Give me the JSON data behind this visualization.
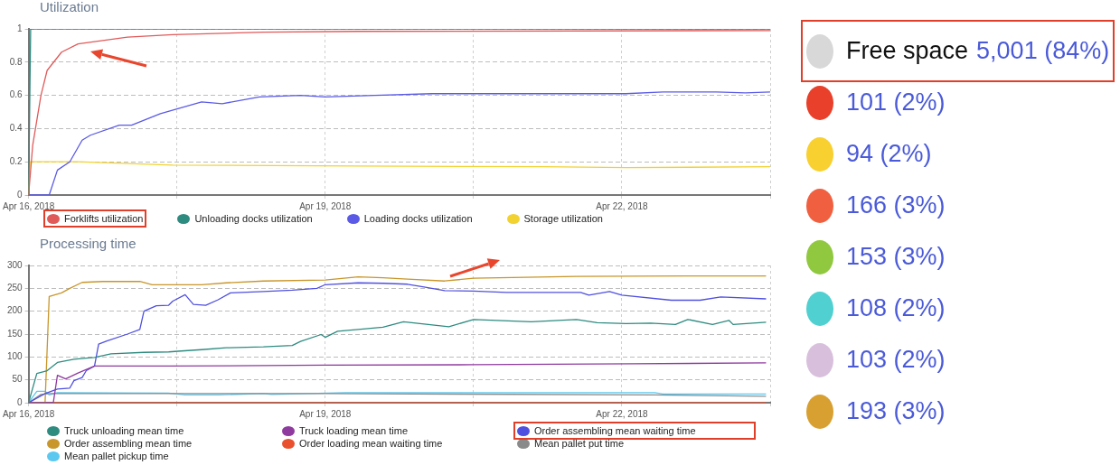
{
  "chart_data": [
    {
      "type": "line",
      "title": "Utilization",
      "xlim": [
        "2018-04-16",
        "2018-04-23T12:00"
      ],
      "xticks": [
        {
          "value": "2018-04-16",
          "label": "Apr 16, 2018"
        },
        {
          "value": "2018-04-17T12:00",
          "label": null
        },
        {
          "value": "2018-04-19",
          "label": "Apr 19, 2018"
        },
        {
          "value": "2018-04-20T12:00",
          "label": null
        },
        {
          "value": "2018-04-22",
          "label": "Apr 22, 2018"
        },
        {
          "value": "2018-04-23T12:00",
          "label": null
        }
      ],
      "ylim": [
        0,
        1
      ],
      "yticks": [
        0,
        0.2,
        0.4,
        0.6,
        0.8,
        1
      ],
      "grid": true,
      "legend": "bottom",
      "marker": "none",
      "line_style": "solid",
      "series": [
        {
          "name": "Forklifts utilization",
          "color": "#e05a5a",
          "x": [
            "2018-04-16",
            "2018-04-16T01:00",
            "2018-04-16T03:00",
            "2018-04-16T04:30",
            "2018-04-16T08:00",
            "2018-04-16T12:00",
            "2018-04-17",
            "2018-04-17T11:00",
            "2018-04-18T09:00",
            "2018-04-19T08:00",
            "2018-04-23T12:00"
          ],
          "values": [
            0,
            0.3,
            0.6,
            0.75,
            0.86,
            0.91,
            0.95,
            0.965,
            0.98,
            0.985,
            0.99
          ]
        },
        {
          "name": "Unloading docks utilization",
          "color": "#2e8b80",
          "x": [
            "2018-04-16",
            "2018-04-16T00:30",
            "2018-04-23T12:00"
          ],
          "values": [
            0,
            1,
            1
          ]
        },
        {
          "name": "Loading docks utilization",
          "color": "#5a5ae6",
          "x": [
            "2018-04-16",
            "2018-04-16T05:00",
            "2018-04-16T07:00",
            "2018-04-16T10:00",
            "2018-04-16T13:00",
            "2018-04-16T15:00",
            "2018-04-16T22:00",
            "2018-04-17T01:00",
            "2018-04-17T08:00",
            "2018-04-17T18:00",
            "2018-04-17T23:00",
            "2018-04-18T08:00",
            "2018-04-18T18:00",
            "2018-04-19",
            "2018-04-19T12:00",
            "2018-04-20T02:00",
            "2018-04-20T17:00",
            "2018-04-21T05:00",
            "2018-04-22T01:00",
            "2018-04-22T10:00",
            "2018-04-22T23:00",
            "2018-04-23T06:00",
            "2018-04-23T12:00"
          ],
          "values": [
            0,
            0,
            0.15,
            0.2,
            0.33,
            0.36,
            0.42,
            0.42,
            0.49,
            0.56,
            0.55,
            0.59,
            0.6,
            0.59,
            0.6,
            0.61,
            0.61,
            0.61,
            0.61,
            0.62,
            0.62,
            0.615,
            0.62
          ]
        },
        {
          "name": "Storage utilization",
          "color": "#f2d230",
          "x": [
            "2018-04-16",
            "2018-04-16T00:20",
            "2018-04-16T12:00",
            "2018-04-17T11:00",
            "2018-04-19T08:00",
            "2018-04-21T05:00",
            "2018-04-22T01:00",
            "2018-04-23T12:00"
          ],
          "values": [
            0,
            0.2,
            0.2,
            0.18,
            0.175,
            0.17,
            0.165,
            0.17
          ]
        }
      ]
    },
    {
      "type": "line",
      "title": "Processing time",
      "xlim": [
        "2018-04-16",
        "2018-04-23T12:00"
      ],
      "xticks": [
        {
          "value": "2018-04-16",
          "label": "Apr 16, 2018"
        },
        {
          "value": "2018-04-17T12:00",
          "label": null
        },
        {
          "value": "2018-04-19",
          "label": "Apr 19, 2018"
        },
        {
          "value": "2018-04-20T12:00",
          "label": null
        },
        {
          "value": "2018-04-22",
          "label": "Apr 22, 2018"
        },
        {
          "value": "2018-04-23T12:00",
          "label": null
        }
      ],
      "ylim": [
        0,
        300
      ],
      "yticks": [
        0,
        50,
        100,
        150,
        200,
        250,
        300
      ],
      "grid": true,
      "legend": "bottom",
      "marker": "none",
      "line_style": "solid",
      "series": [
        {
          "name": "Truck unloading mean time",
          "color": "#2e8b80",
          "x": [
            "2018-04-16",
            "2018-04-16T02:00",
            "2018-04-16T04:30",
            "2018-04-16T07:00",
            "2018-04-16T11:00",
            "2018-04-16T16:00",
            "2018-04-16T20:00",
            "2018-04-17T04:00",
            "2018-04-17T10:00",
            "2018-04-17T13:00",
            "2018-04-17T18:00",
            "2018-04-18",
            "2018-04-18T09:00",
            "2018-04-18T16:00",
            "2018-04-18T18:00",
            "2018-04-18T23:00",
            "2018-04-19",
            "2018-04-19T03:00",
            "2018-04-19T08:00",
            "2018-04-19T14:00",
            "2018-04-19T19:00",
            "2018-04-20T06:00",
            "2018-04-20T12:00",
            "2018-04-21T02:00",
            "2018-04-21T13:00",
            "2018-04-21T18:00",
            "2018-04-22T01:00",
            "2018-04-22T07:00",
            "2018-04-22T13:00",
            "2018-04-22T16:00",
            "2018-04-22T22:00",
            "2018-04-23T02:00",
            "2018-04-23T03:00",
            "2018-04-23T11:00"
          ],
          "values": [
            0,
            64,
            70,
            88,
            95,
            99,
            107,
            110,
            111,
            113,
            116,
            120,
            122,
            125,
            134,
            149,
            143,
            156,
            160,
            165,
            177,
            166,
            182,
            177,
            182,
            175,
            173,
            174,
            171,
            182,
            171,
            180,
            171,
            176
          ]
        },
        {
          "name": "Truck loading mean time",
          "color": "#8e3a9e",
          "x": [
            "2018-04-16",
            "2018-04-16T06:00",
            "2018-04-16T07:00",
            "2018-04-16T09:00",
            "2018-04-16T12:00",
            "2018-04-16T16:00",
            "2018-04-17T10:00",
            "2018-04-19",
            "2018-04-20T12:00",
            "2018-04-22T03:00",
            "2018-04-23T11:00"
          ],
          "values": [
            0,
            0,
            60,
            52,
            65,
            80,
            80,
            82,
            83,
            85,
            87
          ]
        },
        {
          "name": "Order assembling mean waiting time",
          "color": "#5050e0",
          "x": [
            "2018-04-16",
            "2018-04-16T04:00",
            "2018-04-16T07:00",
            "2018-04-16T10:00",
            "2018-04-16T11:00",
            "2018-04-16T13:00",
            "2018-04-16T14:00",
            "2018-04-16T16:00",
            "2018-04-16T17:00",
            "2018-04-16T19:00",
            "2018-04-17T00:00",
            "2018-04-17T03:00",
            "2018-04-17T04:00",
            "2018-04-17T07:00",
            "2018-04-17T10:00",
            "2018-04-17T11:00",
            "2018-04-17T14:00",
            "2018-04-17T16:00",
            "2018-04-17T19:00",
            "2018-04-17T22:00",
            "2018-04-18T01:00",
            "2018-04-18T09:00",
            "2018-04-18T16:00",
            "2018-04-18T22:00",
            "2018-04-19",
            "2018-04-19T08:00",
            "2018-04-19T14:00",
            "2018-04-19T20:00",
            "2018-04-20T00:00",
            "2018-04-20T05:00",
            "2018-04-20T12:00",
            "2018-04-20T20:00",
            "2018-04-21T14:00",
            "2018-04-21T16:00",
            "2018-04-21T21:00",
            "2018-04-22",
            "2018-04-22T12:00",
            "2018-04-22T19:00",
            "2018-04-23T00:00",
            "2018-04-23T11:00"
          ],
          "values": [
            0,
            20,
            30,
            32,
            48,
            55,
            70,
            80,
            128,
            135,
            150,
            160,
            200,
            212,
            213,
            222,
            236,
            215,
            213,
            225,
            240,
            243,
            246,
            250,
            258,
            262,
            261,
            259,
            253,
            245,
            244,
            241,
            241,
            235,
            243,
            235,
            224,
            224,
            231,
            227
          ]
        },
        {
          "name": "Order assembling mean time",
          "color": "#c8962a",
          "x": [
            "2018-04-16",
            "2018-04-16T04:00",
            "2018-04-16T05:00",
            "2018-04-16T08:00",
            "2018-04-16T10:00",
            "2018-04-16T13:00",
            "2018-04-16T18:00",
            "2018-04-17T03:00",
            "2018-04-17T06:00",
            "2018-04-17T18:00",
            "2018-04-18",
            "2018-04-18T09:00",
            "2018-04-19",
            "2018-04-19T08:00",
            "2018-04-19T14:00",
            "2018-04-19T20:00",
            "2018-04-20T05:00",
            "2018-04-20T12:00",
            "2018-04-21T13:00",
            "2018-04-22T15:00",
            "2018-04-23T11:00"
          ],
          "values": [
            0,
            0,
            232,
            240,
            250,
            263,
            265,
            265,
            258,
            258,
            262,
            266,
            268,
            275,
            273,
            270,
            266,
            272,
            276,
            277,
            277
          ]
        },
        {
          "name": "Order loading mean waiting time",
          "color": "#e8502e",
          "x": [
            "2018-04-16",
            "2018-04-23T11:00"
          ],
          "values": [
            0,
            0
          ]
        },
        {
          "name": "Mean pallet put time",
          "color": "#8a8a8a",
          "x": [
            "2018-04-16",
            "2018-04-16T03:00",
            "2018-04-16T05:00",
            "2018-04-19",
            "2018-04-22T08:00",
            "2018-04-23T11:00"
          ],
          "values": [
            0,
            18,
            20,
            20,
            17,
            14
          ]
        },
        {
          "name": "Mean pallet pickup time",
          "color": "#5bc8f0",
          "x": [
            "2018-04-16",
            "2018-04-16T02:00",
            "2018-04-16T04:00",
            "2018-04-16T05:00",
            "2018-04-16T07:00",
            "2018-04-17T10:00",
            "2018-04-17T14:00",
            "2018-04-17T22:00",
            "2018-04-18T09:00",
            "2018-04-18T11:00",
            "2018-04-19T05:00",
            "2018-04-22T08:00",
            "2018-04-22T10:00",
            "2018-04-23T11:00"
          ],
          "values": [
            0,
            25,
            25,
            17,
            22,
            21,
            17,
            17,
            20,
            18,
            22,
            22,
            19,
            19
          ]
        }
      ]
    },
    {
      "type": "other",
      "categories": [
        "Free space",
        null,
        null,
        null,
        null,
        null,
        null,
        null
      ],
      "colors": [
        "#d8d8d8",
        "#e8402a",
        "#f8d030",
        "#f06040",
        "#90c840",
        "#50d0d0",
        "#d8c0dc",
        "#d8a030"
      ],
      "value_labels": [
        "5,001 (84%)",
        "101 (2%)",
        "94 (2%)",
        "166 (3%)",
        "153 (3%)",
        "108 (2%)",
        "103 (2%)",
        "193 (3%)"
      ]
    }
  ]
}
